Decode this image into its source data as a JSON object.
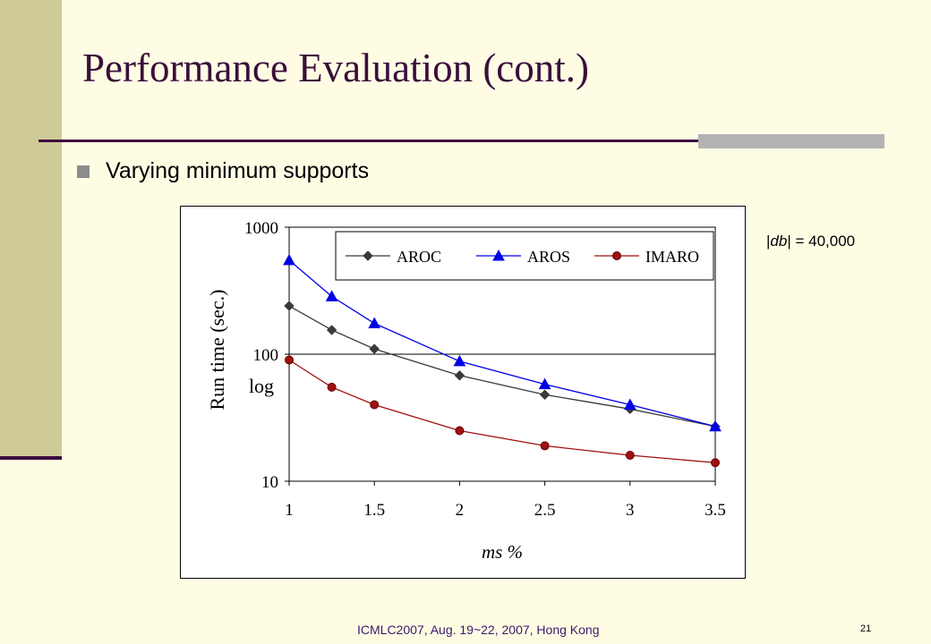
{
  "slide": {
    "title": "Performance Evaluation (cont.)",
    "bullet": "Varying minimum supports",
    "db_note_var": "db",
    "db_note_value": " = 40,000",
    "footer": "ICMLC2007, Aug. 19~22, 2007, Hong Kong",
    "page_number": "21"
  },
  "colors": {
    "background": "#fefde4",
    "sidebar": "#cfcb98",
    "accent_dark": "#3c0a3c",
    "aroc": "#3a3a3a",
    "aros": "#0000e6",
    "imaro": "#a01010"
  },
  "chart_data": {
    "type": "line",
    "x_ticks": [
      "1",
      "1.5",
      "2",
      "2.5",
      "3",
      "3.5"
    ],
    "y_ticks": [
      "10",
      "100",
      "1000"
    ],
    "y_scale": "log",
    "xlim": [
      1,
      3.5
    ],
    "ylim": [
      10,
      1000
    ],
    "grid": "horizontal line at 100",
    "legend_position": "top-right",
    "xlabel": "ms %",
    "ylabel": "Run time (sec.)",
    "ylabel_extra": "log",
    "series": [
      {
        "name": "AROC",
        "marker": "diamond",
        "color": "#3a3a3a",
        "x": [
          1,
          1.25,
          1.5,
          2,
          2.5,
          3,
          3.5
        ],
        "y": [
          240,
          155,
          110,
          68,
          48,
          37,
          27
        ]
      },
      {
        "name": "AROS",
        "marker": "triangle",
        "color": "#0000e6",
        "x": [
          1,
          1.25,
          1.5,
          2,
          2.5,
          3,
          3.5
        ],
        "y": [
          550,
          285,
          175,
          88,
          58,
          40,
          27
        ]
      },
      {
        "name": "IMARO",
        "marker": "circle",
        "color": "#a01010",
        "x": [
          1,
          1.25,
          1.5,
          2,
          2.5,
          3,
          3.5
        ],
        "y": [
          90,
          55,
          40,
          25,
          19,
          16,
          14
        ]
      }
    ]
  }
}
